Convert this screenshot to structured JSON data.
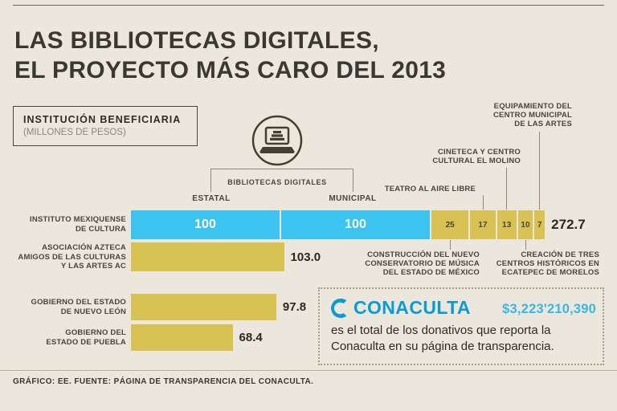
{
  "title": {
    "line1": "LAS BIBLIOTECAS DIGITALES,",
    "line2": "EL PROYECTO MÁS CARO DEL 2013"
  },
  "legend_box": {
    "title": "INSTITUCIÓN BENEFICIARIA",
    "subtitle": "(MILLONES DE PESOS)"
  },
  "icon_label": "BIBLIOTECAS DIGITALES",
  "column_labels": {
    "estatal": "ESTATAL",
    "municipal": "MUNICIPAL"
  },
  "chart_data": {
    "type": "bar",
    "orientation": "horizontal",
    "unit": "millones de pesos",
    "rows": [
      {
        "label": "INSTITUTO MEXIQUENSE\nDE CULTURA",
        "total": "272.7",
        "segments": [
          {
            "value": 100,
            "label": "100",
            "color": "cyan",
            "category": "ESTATAL"
          },
          {
            "value": 100,
            "label": "100",
            "color": "cyan",
            "category": "MUNICIPAL"
          },
          {
            "value": 25,
            "label": "25",
            "color": "gold",
            "annotation": "conservatorio"
          },
          {
            "value": 17,
            "label": "17",
            "color": "gold",
            "annotation": "teatro"
          },
          {
            "value": 13,
            "label": "13",
            "color": "gold",
            "annotation": "cineteca"
          },
          {
            "value": 10,
            "label": "10",
            "color": "gold",
            "annotation": "creacion"
          },
          {
            "value": 7,
            "label": "7",
            "color": "gold",
            "annotation": "equipamiento"
          }
        ]
      },
      {
        "label": "ASOCIACIÓN AZTECA\nAMIGOS DE LAS CULTURAS\nY LAS ARTES AC",
        "total": "103.0",
        "segments": [
          {
            "value": 103.0,
            "color": "gold"
          }
        ]
      },
      {
        "label": "GOBIERNO DEL ESTADO\nDE NUEVO LEÓN",
        "total": "97.8",
        "segments": [
          {
            "value": 97.8,
            "color": "gold"
          }
        ]
      },
      {
        "label": "GOBIERNO DEL\nESTADO DE PUEBLA",
        "total": "68.4",
        "segments": [
          {
            "value": 68.4,
            "color": "gold"
          }
        ]
      }
    ]
  },
  "annotations": {
    "teatro": "TEATRO AL AIRE LIBRE",
    "cineteca": "CINETECA Y CENTRO\nCULTURAL EL MOLINO",
    "equipamiento": "EQUIPAMIENTO DEL\nCENTRO MUNICIPAL\nDE LAS ARTES",
    "conservatorio": "CONSTRUCCIÓN DEL NUEVO\nCONSERVATORIO DE MÚSICA\nDEL ESTADO DE MÉXICO",
    "creacion": "CREACIÓN DE TRES\nCENTROS HISTÓRICOS EN\nECATEPEC DE MORELOS"
  },
  "callout": {
    "brand": "CONACULTA",
    "amount": "$3,223'210,390",
    "text": "es el total de los donativos que reporta la\nConaculta en su página de transparencia."
  },
  "footer": "GRÁFICO: EE. FUENTE: PÁGINA DE TRANSPARENCIA DEL CONACULTA.",
  "colors": {
    "background": "#ece7dc",
    "bar_cyan": "#3cc3ef",
    "bar_gold": "#d7c253",
    "brand_blue": "#0a9bd7",
    "amount_cyan": "#39b6e8",
    "text_dark": "#3b3833"
  }
}
